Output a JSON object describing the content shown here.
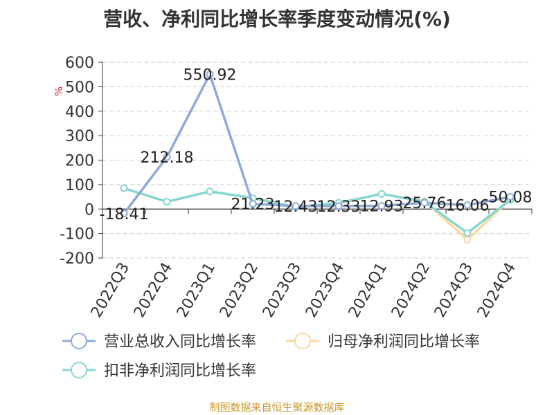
{
  "chart_data": {
    "type": "line",
    "title": "营收、净利同比增长率季度变动情况(%)",
    "ylabel": "%",
    "xlabel": "",
    "ylim": [
      -200,
      600
    ],
    "yticks": [
      600,
      500,
      400,
      300,
      200,
      100,
      0,
      -100,
      -200
    ],
    "categories": [
      "2022Q3",
      "2022Q4",
      "2023Q1",
      "2023Q2",
      "2023Q3",
      "2023Q4",
      "2024Q1",
      "2024Q2",
      "2024Q3",
      "2024Q4"
    ],
    "grid": true,
    "legend_position": "bottom",
    "series": [
      {
        "name": "营业总收入同比增长率",
        "color": "#8eaad6",
        "values": [
          -18.41,
          212.18,
          550.92,
          21.23,
          12.43,
          12.33,
          12.93,
          25.76,
          16.06,
          50.08
        ],
        "labels": [
          "-18.41",
          "212.18",
          "550.92",
          "21.23",
          "12.43",
          "12.33",
          "12.93",
          "25.76",
          "16.06",
          "50.08"
        ]
      },
      {
        "name": "归母净利润同比增长率",
        "color": "#f8d9a0",
        "values": [
          85,
          30,
          72,
          45,
          8,
          22,
          62,
          32,
          -125,
          40
        ]
      },
      {
        "name": "扣非净利润同比增长率",
        "color": "#86d6d2",
        "values": [
          85,
          30,
          72,
          45,
          8,
          25,
          62,
          30,
          -98,
          38
        ]
      }
    ]
  },
  "source": "制图数据来自恒生聚源数据库"
}
